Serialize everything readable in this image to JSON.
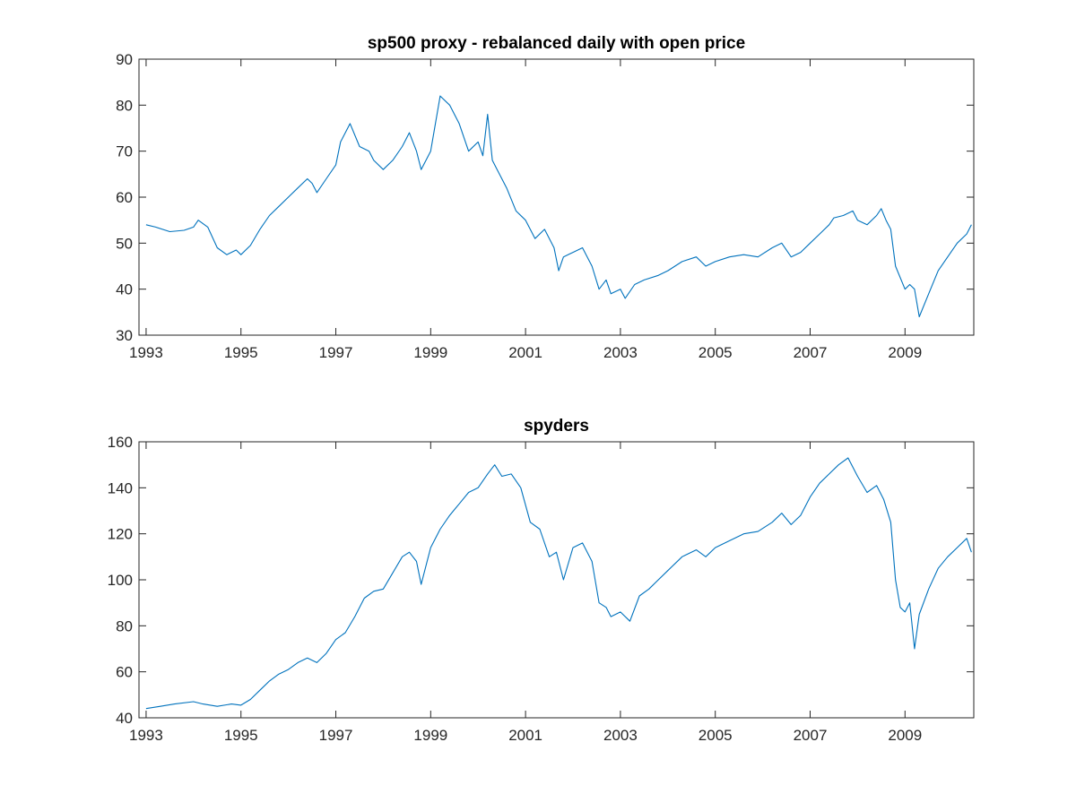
{
  "chart_data": [
    {
      "type": "line",
      "title": "sp500 proxy - rebalanced daily with open price",
      "xlabel": "",
      "ylabel": "",
      "xlim": [
        1992.85,
        2010.45
      ],
      "ylim": [
        30,
        90
      ],
      "xticks": [
        1993,
        1995,
        1997,
        1999,
        2001,
        2003,
        2005,
        2007,
        2009
      ],
      "yticks": [
        30,
        40,
        50,
        60,
        70,
        80,
        90
      ],
      "grid": false,
      "color": "#0072BD",
      "series": [
        {
          "x": [
            1993.0,
            1993.2,
            1993.5,
            1993.8,
            1994.0,
            1994.1,
            1994.3,
            1994.5,
            1994.7,
            1994.9,
            1995.0,
            1995.2,
            1995.4,
            1995.6,
            1995.8,
            1996.0,
            1996.2,
            1996.4,
            1996.5,
            1996.6,
            1996.8,
            1997.0,
            1997.1,
            1997.3,
            1997.5,
            1997.7,
            1997.8,
            1998.0,
            1998.2,
            1998.4,
            1998.55,
            1998.7,
            1998.8,
            1999.0,
            1999.1,
            1999.2,
            1999.4,
            1999.6,
            1999.8,
            2000.0,
            2000.1,
            2000.2,
            2000.3,
            2000.4,
            2000.6,
            2000.8,
            2001.0,
            2001.2,
            2001.4,
            2001.6,
            2001.7,
            2001.8,
            2002.0,
            2002.2,
            2002.4,
            2002.55,
            2002.7,
            2002.8,
            2003.0,
            2003.1,
            2003.3,
            2003.5,
            2003.8,
            2004.0,
            2004.3,
            2004.6,
            2004.8,
            2005.0,
            2005.3,
            2005.6,
            2005.9,
            2006.2,
            2006.4,
            2006.6,
            2006.8,
            2007.0,
            2007.2,
            2007.4,
            2007.5,
            2007.7,
            2007.9,
            2008.0,
            2008.2,
            2008.4,
            2008.5,
            2008.6,
            2008.7,
            2008.8,
            2009.0,
            2009.1,
            2009.2,
            2009.3,
            2009.5,
            2009.7,
            2009.9,
            2010.1,
            2010.3,
            2010.4
          ],
          "y": [
            54,
            53.5,
            52.5,
            52.8,
            53.5,
            55,
            53.5,
            49,
            47.5,
            48.5,
            47.5,
            49.5,
            53,
            56,
            58,
            60,
            62,
            64,
            63,
            61,
            64,
            67,
            72,
            76,
            71,
            70,
            68,
            66,
            68,
            71,
            74,
            70,
            66,
            70,
            76,
            82,
            80,
            76,
            70,
            72,
            69,
            78,
            68,
            66,
            62,
            57,
            55,
            51,
            53,
            49,
            44,
            47,
            48,
            49,
            45,
            40,
            42,
            39,
            40,
            38,
            41,
            42,
            43,
            44,
            46,
            47,
            45,
            46,
            47,
            47.5,
            47,
            49,
            50,
            47,
            48,
            50,
            52,
            54,
            55.5,
            56,
            57,
            55,
            54,
            56,
            57.5,
            55,
            53,
            45,
            40,
            41,
            40,
            34,
            39,
            44,
            47,
            50,
            52,
            54
          ]
        }
      ]
    },
    {
      "type": "line",
      "title": "spyders",
      "xlabel": "",
      "ylabel": "",
      "xlim": [
        1992.85,
        2010.45
      ],
      "ylim": [
        40,
        160
      ],
      "xticks": [
        1993,
        1995,
        1997,
        1999,
        2001,
        2003,
        2005,
        2007,
        2009
      ],
      "yticks": [
        40,
        60,
        80,
        100,
        120,
        140,
        160
      ],
      "grid": false,
      "color": "#0072BD",
      "series": [
        {
          "x": [
            1993.0,
            1993.3,
            1993.6,
            1994.0,
            1994.2,
            1994.5,
            1994.8,
            1995.0,
            1995.2,
            1995.4,
            1995.6,
            1995.8,
            1996.0,
            1996.2,
            1996.4,
            1996.6,
            1996.8,
            1997.0,
            1997.2,
            1997.4,
            1997.6,
            1997.8,
            1998.0,
            1998.2,
            1998.4,
            1998.55,
            1998.7,
            1998.8,
            1999.0,
            1999.2,
            1999.4,
            1999.6,
            1999.8,
            2000.0,
            2000.2,
            2000.35,
            2000.5,
            2000.7,
            2000.9,
            2001.1,
            2001.3,
            2001.5,
            2001.65,
            2001.8,
            2002.0,
            2002.2,
            2002.4,
            2002.55,
            2002.7,
            2002.8,
            2003.0,
            2003.2,
            2003.4,
            2003.6,
            2003.8,
            2004.0,
            2004.3,
            2004.6,
            2004.8,
            2005.0,
            2005.3,
            2005.6,
            2005.9,
            2006.2,
            2006.4,
            2006.6,
            2006.8,
            2007.0,
            2007.2,
            2007.4,
            2007.6,
            2007.8,
            2008.0,
            2008.2,
            2008.4,
            2008.55,
            2008.7,
            2008.8,
            2008.9,
            2009.0,
            2009.1,
            2009.2,
            2009.3,
            2009.5,
            2009.7,
            2009.9,
            2010.1,
            2010.3,
            2010.4
          ],
          "y": [
            44,
            45,
            46,
            47,
            46,
            45,
            46,
            45.5,
            48,
            52,
            56,
            59,
            61,
            64,
            66,
            64,
            68,
            74,
            77,
            84,
            92,
            95,
            96,
            103,
            110,
            112,
            108,
            98,
            114,
            122,
            128,
            133,
            138,
            140,
            146,
            150,
            145,
            146,
            140,
            125,
            122,
            110,
            112,
            100,
            114,
            116,
            108,
            90,
            88,
            84,
            86,
            82,
            93,
            96,
            100,
            104,
            110,
            113,
            110,
            114,
            117,
            120,
            121,
            125,
            129,
            124,
            128,
            136,
            142,
            146,
            150,
            153,
            145,
            138,
            141,
            135,
            125,
            100,
            88,
            86,
            90,
            70,
            85,
            96,
            105,
            110,
            114,
            118,
            112
          ]
        }
      ]
    }
  ]
}
